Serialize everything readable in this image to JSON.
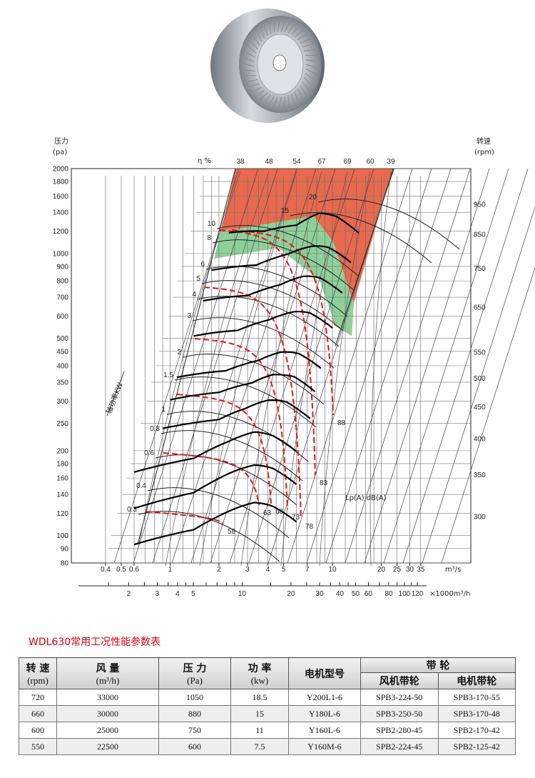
{
  "chart_data": {
    "type": "fan-performance-curve",
    "y_axis": {
      "label": "压力",
      "unit": "(pa)",
      "scale": "log",
      "ticks": [
        80,
        90,
        100,
        120,
        140,
        160,
        180,
        200,
        250,
        300,
        350,
        400,
        450,
        500,
        600,
        700,
        800,
        900,
        1000,
        1200,
        1400,
        1600,
        1800,
        2000
      ]
    },
    "x_axis_1": {
      "unit": "m³/s",
      "scale": "log",
      "ticks": [
        0.4,
        0.5,
        0.6,
        1,
        2,
        3,
        4,
        5,
        7,
        10,
        20,
        25,
        30,
        35
      ]
    },
    "x_axis_2": {
      "unit": "×1000m³/h",
      "scale": "log",
      "ticks": [
        2,
        3,
        4,
        5,
        10,
        20,
        30,
        40,
        50,
        60,
        80,
        100,
        120
      ]
    },
    "speed_axis": {
      "label": "转速",
      "unit": "(rpm)",
      "ticks": [
        300,
        350,
        400,
        450,
        500,
        550,
        650,
        750,
        850,
        950
      ]
    },
    "efficiency": {
      "label": "η %",
      "ticks": [
        "38",
        "48",
        "54",
        "67",
        "69",
        "60",
        "39"
      ]
    },
    "power_axis": {
      "label": "轴功率KW",
      "ticks": [
        "0.3",
        "0.4",
        "0.6",
        "0.8",
        "1",
        "1.5",
        "2",
        "3",
        "4",
        "5",
        "6",
        "8",
        "10",
        "15",
        "20"
      ]
    },
    "noise": {
      "label": "Lp(A) dB(A)",
      "ticks": [
        "58",
        "63",
        "68",
        "73",
        "78",
        "83",
        "88"
      ]
    },
    "curves": [
      {
        "rpm": 300,
        "points": [
          [
            0.6,
            93
          ],
          [
            1.4,
            105
          ],
          [
            2.3,
            122
          ],
          [
            3.3,
            131
          ],
          [
            4.3,
            127
          ],
          [
            6,
            112
          ]
        ]
      },
      {
        "rpm": 350,
        "points": [
          [
            0.6,
            125
          ],
          [
            1.4,
            142
          ],
          [
            2.3,
            166
          ],
          [
            3.3,
            178
          ],
          [
            4.3,
            173
          ],
          [
            6,
            152
          ]
        ]
      },
      {
        "rpm": 400,
        "points": [
          [
            0.6,
            168
          ],
          [
            1.4,
            188
          ],
          [
            2.3,
            216
          ],
          [
            3.3,
            233
          ],
          [
            4.3,
            226
          ],
          [
            6,
            199
          ]
        ]
      },
      {
        "rpm": 450,
        "points": [
          [
            0.9,
            240
          ],
          [
            2,
            258
          ],
          [
            2.9,
            282
          ],
          [
            4,
            302
          ],
          [
            5.2,
            298
          ],
          [
            7.3,
            260
          ]
        ]
      },
      {
        "rpm": 500,
        "points": [
          [
            1,
            303
          ],
          [
            2,
            322
          ],
          [
            3.2,
            348
          ],
          [
            4.3,
            372
          ],
          [
            5.8,
            366
          ],
          [
            7.8,
            324
          ]
        ]
      },
      {
        "rpm": 550,
        "points": [
          [
            1.1,
            364
          ],
          [
            2.2,
            384
          ],
          [
            3.5,
            418
          ],
          [
            4.8,
            447
          ],
          [
            6.2,
            442
          ],
          [
            8.5,
            392
          ]
        ]
      },
      {
        "rpm": 650,
        "points": [
          [
            1.4,
            510
          ],
          [
            2.6,
            534
          ],
          [
            4.1,
            583
          ],
          [
            5.8,
            622
          ],
          [
            7.3,
            615
          ],
          [
            10,
            545
          ]
        ]
      },
      {
        "rpm": 750,
        "points": [
          [
            1.6,
            680
          ],
          [
            3,
            710
          ],
          [
            4.8,
            776
          ],
          [
            6.6,
            830
          ],
          [
            8.4,
            820
          ],
          [
            11.5,
            725
          ]
        ]
      },
      {
        "rpm": 850,
        "points": [
          [
            1.8,
            873
          ],
          [
            3.4,
            910
          ],
          [
            5.3,
            995
          ],
          [
            7.5,
            1062
          ],
          [
            9.5,
            1050
          ],
          [
            13,
            930
          ]
        ]
      },
      {
        "rpm": 950,
        "points": [
          [
            2.3,
            1185
          ],
          [
            3.8,
            1200
          ],
          [
            6,
            1260
          ],
          [
            8.3,
            1390
          ],
          [
            10.6,
            1352
          ],
          [
            14.6,
            1180
          ]
        ]
      }
    ]
  },
  "table": {
    "title": "WDL630常用工况性能参数表",
    "headers": {
      "speed": "转 速",
      "speed_unit": "(rpm)",
      "flow": "风 量",
      "flow_unit": "(m³/h)",
      "pressure": "压 力",
      "pressure_unit": "(Pa)",
      "power": "功 率",
      "power_unit": "(kw)",
      "motor": "电机型号",
      "belt": "带 轮",
      "fan_pulley": "风机带轮",
      "motor_pulley": "电机带轮"
    },
    "rows": [
      [
        "720",
        "33000",
        "1050",
        "18.5",
        "Y200L1-6",
        "SPB3-224-50",
        "SPB3-170-55"
      ],
      [
        "660",
        "30000",
        "880",
        "15",
        "Y180L-6",
        "SPB3-250-50",
        "SPB3-170-48"
      ],
      [
        "600",
        "25000",
        "750",
        "11",
        "Y160L-6",
        "SPB2-280-45",
        "SPB2-170-42"
      ],
      [
        "550",
        "22500",
        "600",
        "7.5",
        "Y160M-6",
        "SPB2-224-45",
        "SPB2-125-42"
      ]
    ]
  }
}
